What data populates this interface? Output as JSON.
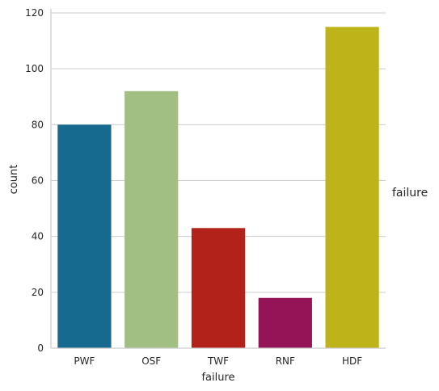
{
  "chart_data": {
    "type": "bar",
    "categories": [
      "PWF",
      "OSF",
      "TWF",
      "RNF",
      "HDF"
    ],
    "values": [
      80,
      92,
      43,
      18,
      115
    ],
    "colors": [
      "#176a8f",
      "#a1bf82",
      "#b2221b",
      "#931457",
      "#bfb31a"
    ],
    "title": "",
    "xlabel": "failure",
    "ylabel": "count",
    "ylim": [
      0,
      120
    ],
    "yticks": [
      0,
      20,
      40,
      60,
      80,
      100,
      120
    ],
    "grid": "horizontal",
    "legend_title": "failure",
    "legend_placement": "right"
  }
}
